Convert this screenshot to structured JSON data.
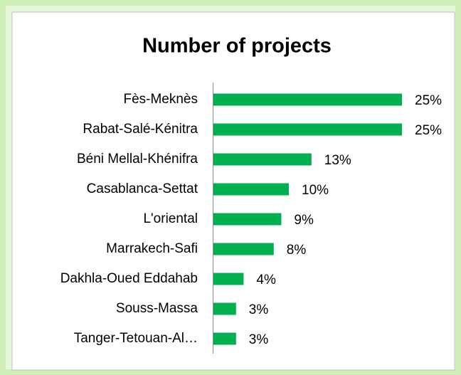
{
  "chart_data": {
    "type": "bar",
    "orientation": "horizontal",
    "title": "Number of projects",
    "categories": [
      "Fès-Meknès",
      "Rabat-Salé-Kénitra",
      "Béni Mellal-Khénifra",
      "Casablanca-Settat",
      "L'oriental",
      "Marrakech-Safi",
      "Dakhla-Oued Eddahab",
      "Souss-Massa",
      "Tanger-Tetouan-Al…"
    ],
    "values": [
      25,
      25,
      13,
      10,
      9,
      8,
      4,
      3,
      3
    ],
    "value_labels": [
      "25%",
      "25%",
      "13%",
      "10%",
      "9%",
      "8%",
      "4%",
      "3%",
      "3%"
    ],
    "color": "#00b050"
  }
}
